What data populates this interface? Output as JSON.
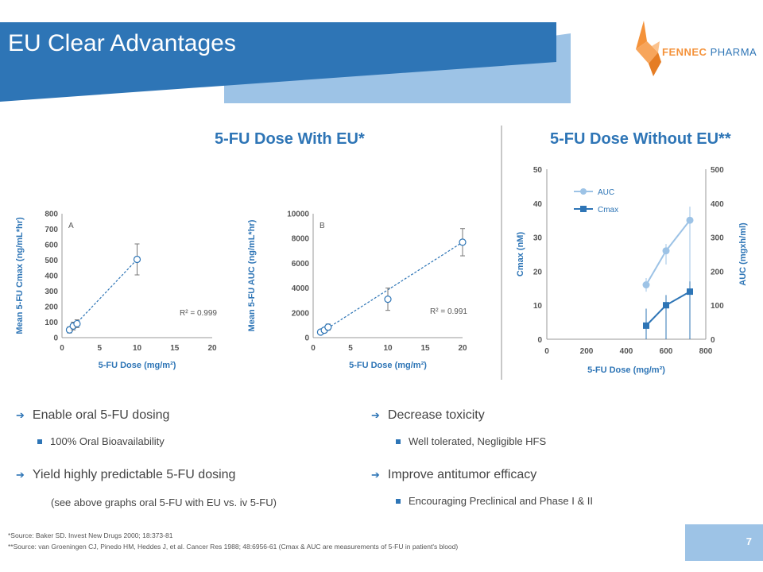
{
  "title": "EU Clear Advantages",
  "logo": {
    "name_part1": "FENNEC",
    "name_part2": "PHARMA"
  },
  "section_left": "5-FU Dose With EU*",
  "section_right": "5-FU Dose Without EU**",
  "chart_data": [
    {
      "type": "scatter",
      "panel_label": "A",
      "xlabel": "5-FU Dose (mg/m²)",
      "ylabel": "Mean 5-FU Cmax (ng/mL*hr)",
      "xlim": [
        0,
        20
      ],
      "ylim": [
        0,
        800
      ],
      "xticks": [
        0,
        5,
        10,
        15,
        20
      ],
      "yticks": [
        0,
        100,
        200,
        300,
        400,
        500,
        600,
        700,
        800
      ],
      "points": [
        {
          "x": 1,
          "y": 50,
          "err": 20
        },
        {
          "x": 1.5,
          "y": 75,
          "err": 25
        },
        {
          "x": 2,
          "y": 90,
          "err": 25
        },
        {
          "x": 10,
          "y": 505,
          "err": 100
        }
      ],
      "fit": [
        [
          1,
          45
        ],
        [
          10,
          505
        ]
      ],
      "annotation": "R² = 0.999",
      "grid": false,
      "color": "#2e75b6"
    },
    {
      "type": "scatter",
      "panel_label": "B",
      "xlabel": "5-FU Dose (mg/m²)",
      "ylabel": "Mean 5-FU AUC (ng/mL*hr)",
      "xlim": [
        0,
        20
      ],
      "ylim": [
        0,
        10000
      ],
      "xticks": [
        0,
        5,
        10,
        15,
        20
      ],
      "yticks": [
        0,
        2000,
        4000,
        6000,
        8000,
        10000
      ],
      "points": [
        {
          "x": 1,
          "y": 450,
          "err": 150
        },
        {
          "x": 1.5,
          "y": 600,
          "err": 200
        },
        {
          "x": 2,
          "y": 850,
          "err": 250
        },
        {
          "x": 10,
          "y": 3100,
          "err": 900
        },
        {
          "x": 20,
          "y": 7700,
          "err": 1100
        }
      ],
      "fit": [
        [
          1,
          400
        ],
        [
          20,
          7700
        ]
      ],
      "annotation": "R² = 0.991",
      "grid": false,
      "color": "#2e75b6"
    },
    {
      "type": "line",
      "xlabel": "5-FU Dose (mg/m²)",
      "ylabel": "Cmax (nM)",
      "y2label": "AUC (mgxh/ml)",
      "xlim": [
        0,
        800
      ],
      "ylim": [
        0,
        50
      ],
      "y2lim": [
        0,
        500
      ],
      "xticks": [
        0,
        200,
        400,
        600,
        800
      ],
      "yticks": [
        0,
        10,
        20,
        30,
        40,
        50
      ],
      "y2ticks": [
        0,
        100,
        200,
        300,
        400,
        500
      ],
      "legend_position": "top-left",
      "series": [
        {
          "name": "AUC",
          "axis": "right",
          "color": "#9dc3e6",
          "x": [
            500,
            600,
            720
          ],
          "values": [
            160,
            260,
            350
          ],
          "err_low": [
            20,
            40,
            350
          ],
          "err_high": [
            20,
            20,
            40
          ]
        },
        {
          "name": "Cmax",
          "axis": "left",
          "color": "#2e75b6",
          "x": [
            500,
            600,
            720
          ],
          "values": [
            4,
            10,
            14
          ],
          "err_low": [
            4,
            10,
            14
          ],
          "err_high": [
            5,
            3,
            3
          ]
        }
      ]
    }
  ],
  "bullets_left": [
    {
      "text": "Enable oral 5-FU dosing",
      "sub": "100% Oral Bioavailability"
    },
    {
      "text": "Yield highly predictable 5-FU dosing",
      "note": "(see above graphs oral 5-FU with EU vs. iv 5-FU)"
    }
  ],
  "bullets_right": [
    {
      "text": "Decrease toxicity",
      "sub": "Well tolerated, Negligible HFS"
    },
    {
      "text": "Improve antitumor efficacy",
      "sub": "Encouraging Preclinical and Phase I & II"
    }
  ],
  "footnotes": [
    "*Source: Baker SD. Invest New Drugs 2000; 18:373-81",
    "**Source: van Groeningen CJ, Pinedo HM, Heddes J, et al. Cancer Res 1988; 48:6956-61 (Cmax & AUC are measurements of 5-FU in patient's blood)"
  ],
  "page_number": "7",
  "colors": {
    "brand_blue": "#2e75b6",
    "light_blue": "#9dc3e6",
    "orange": "#f4923a"
  }
}
